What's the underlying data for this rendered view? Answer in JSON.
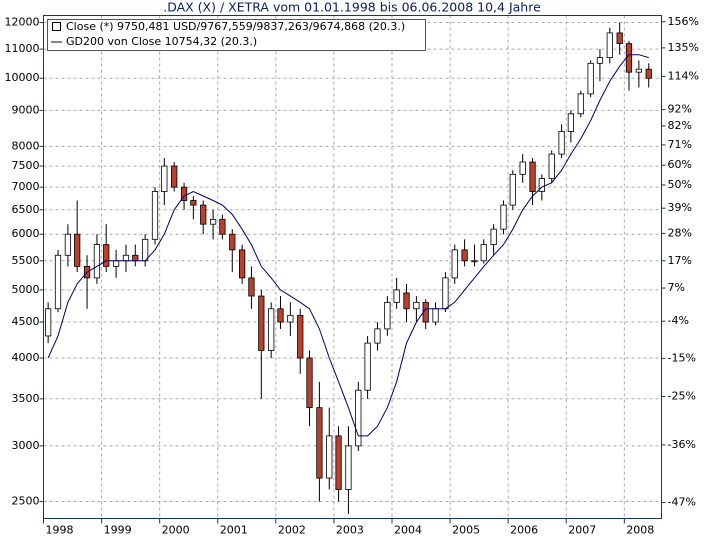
{
  "chart_data": {
    "type": "candlestick",
    "title": ".DAX (X) / XETRA vom 01.01.1998 bis 06.06.2008 10,4 Jahre",
    "x": [
      1998.08,
      1998.25,
      1998.42,
      1998.58,
      1998.75,
      1998.92,
      1999.08,
      1999.25,
      1999.42,
      1999.58,
      1999.75,
      1999.92,
      2000.08,
      2000.25,
      2000.42,
      2000.58,
      2000.75,
      2000.92,
      2001.08,
      2001.25,
      2001.42,
      2001.58,
      2001.75,
      2001.92,
      2002.08,
      2002.25,
      2002.42,
      2002.58,
      2002.75,
      2002.92,
      2003.08,
      2003.25,
      2003.42,
      2003.58,
      2003.75,
      2003.92,
      2004.08,
      2004.25,
      2004.42,
      2004.58,
      2004.75,
      2004.92,
      2005.08,
      2005.25,
      2005.42,
      2005.58,
      2005.75,
      2005.92,
      2006.08,
      2006.25,
      2006.42,
      2006.58,
      2006.75,
      2006.92,
      2007.08,
      2007.25,
      2007.42,
      2007.58,
      2007.75,
      2007.92,
      2008.08,
      2008.25,
      2008.42
    ],
    "series": [
      {
        "name": "Close (*) 9750,481 USD/9767,559/9837,263/9674,868 (20.3.)",
        "up_color": "#ffffff",
        "down_color": "#b8402c",
        "edge_color": "#000000",
        "open": [
          4300,
          4700,
          5600,
          6000,
          5400,
          5200,
          5800,
          5400,
          5500,
          5600,
          5500,
          5900,
          6900,
          7500,
          7000,
          6700,
          6600,
          6200,
          6300,
          6000,
          5700,
          5200,
          4900,
          4100,
          4700,
          4500,
          4600,
          4000,
          3400,
          2700,
          3100,
          2600,
          3000,
          3600,
          4200,
          4400,
          4800,
          4950,
          4700,
          4800,
          4500,
          4700,
          5200,
          5700,
          5500,
          5500,
          5800,
          6100,
          6600,
          7300,
          7600,
          6900,
          7200,
          7800,
          8400,
          8900,
          9500,
          10500,
          10700,
          11600,
          11200,
          10200,
          10300
        ],
        "high": [
          4800,
          5700,
          6200,
          6700,
          5600,
          6000,
          6200,
          5700,
          5800,
          5800,
          6000,
          7000,
          7700,
          7600,
          7100,
          6800,
          6700,
          6500,
          6400,
          6100,
          5800,
          5400,
          5000,
          4800,
          4900,
          4800,
          4700,
          4100,
          3700,
          3400,
          3200,
          3200,
          3700,
          4300,
          4500,
          4900,
          5200,
          5100,
          4900,
          4850,
          4800,
          5300,
          5800,
          5900,
          5800,
          5900,
          6200,
          6700,
          7400,
          7800,
          7700,
          7300,
          7900,
          8600,
          9000,
          9600,
          10600,
          11000,
          11800,
          12000,
          11300,
          10600,
          10500
        ],
        "low": [
          4200,
          4650,
          5400,
          5300,
          4700,
          5100,
          5300,
          5200,
          5300,
          5400,
          5400,
          5800,
          6600,
          6900,
          6500,
          6300,
          6000,
          5900,
          5900,
          5300,
          5100,
          4700,
          3500,
          4000,
          4400,
          4300,
          3800,
          3200,
          2500,
          2600,
          2500,
          2400,
          2950,
          3500,
          4100,
          4300,
          4700,
          4500,
          4500,
          4400,
          4450,
          4650,
          5100,
          5400,
          5400,
          5450,
          5600,
          6000,
          6500,
          7100,
          6600,
          6700,
          7100,
          7700,
          8100,
          8800,
          9400,
          9900,
          10500,
          10800,
          9600,
          9700,
          9700
        ],
        "close": [
          4700,
          5600,
          6000,
          5400,
          5200,
          5800,
          5400,
          5500,
          5600,
          5500,
          5900,
          6900,
          7500,
          7000,
          6700,
          6600,
          6200,
          6300,
          6000,
          5700,
          5200,
          4900,
          4100,
          4700,
          4500,
          4600,
          4000,
          3400,
          2700,
          3100,
          2600,
          3000,
          3600,
          4200,
          4400,
          4800,
          5000,
          4700,
          4800,
          4500,
          4700,
          5200,
          5700,
          5500,
          5500,
          5800,
          6100,
          6600,
          7300,
          7600,
          6900,
          7200,
          7800,
          8400,
          8900,
          9500,
          10500,
          10700,
          11600,
          11200,
          10200,
          10300,
          10000
        ]
      },
      {
        "name": "GD200 von Close 10754,32 (20.3.)",
        "color": "#000066",
        "values": [
          4000,
          4300,
          4800,
          5100,
          5300,
          5400,
          5500,
          5500,
          5500,
          5500,
          5500,
          5700,
          6000,
          6500,
          6800,
          6900,
          6800,
          6700,
          6600,
          6400,
          6100,
          5800,
          5400,
          5200,
          5000,
          4900,
          4800,
          4700,
          4400,
          4000,
          3700,
          3400,
          3100,
          3100,
          3200,
          3400,
          3700,
          4200,
          4500,
          4700,
          4700,
          4700,
          4800,
          5000,
          5200,
          5400,
          5600,
          5800,
          6100,
          6500,
          6800,
          7000,
          7100,
          7400,
          7800,
          8200,
          8700,
          9300,
          9900,
          10400,
          10800,
          10800,
          10700
        ]
      }
    ],
    "xlim": [
      1998.0,
      2008.64
    ],
    "xticks": [
      1998,
      1999,
      2000,
      2001,
      2002,
      2003,
      2004,
      2005,
      2006,
      2007,
      2008
    ],
    "ylim": [
      2365,
      12280
    ],
    "ylog": true,
    "yticks": [
      2500,
      3000,
      3500,
      4000,
      4500,
      5000,
      5500,
      6000,
      6500,
      7000,
      7500,
      8000,
      9000,
      10000,
      11000,
      12000
    ],
    "y2lim": [
      -49.7,
      161.3
    ],
    "y2ticks": [
      {
        "value": 156,
        "label": "156%"
      },
      {
        "value": 135,
        "label": "135%"
      },
      {
        "value": 114,
        "label": "114%"
      },
      {
        "value": 92,
        "label": "92%"
      },
      {
        "value": 82,
        "label": "82%"
      },
      {
        "value": 71,
        "label": "71%"
      },
      {
        "value": 60,
        "label": "60%"
      },
      {
        "value": 50,
        "label": "50%"
      },
      {
        "value": 39,
        "label": "39%"
      },
      {
        "value": 28,
        "label": "28%"
      },
      {
        "value": 17,
        "label": "17%"
      },
      {
        "value": 7,
        "label": "7%"
      },
      {
        "value": -4,
        "label": "-4%"
      },
      {
        "value": -15,
        "label": "-15%"
      },
      {
        "value": -25,
        "label": "-25%"
      },
      {
        "value": -36,
        "label": "-36%"
      },
      {
        "value": -47,
        "label": "-47%"
      }
    ],
    "grid": true
  }
}
